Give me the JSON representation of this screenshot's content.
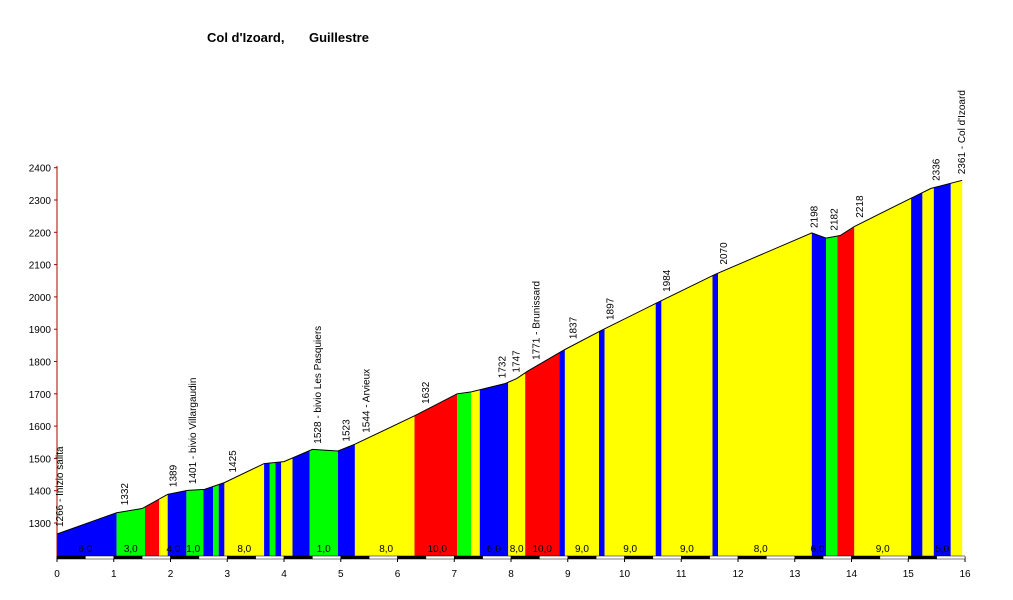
{
  "chart_data": {
    "type": "area",
    "title": "Col d'Izoard,",
    "subtitle": "Guillestre",
    "xlim": [
      0,
      16
    ],
    "ylim": [
      1200,
      2400
    ],
    "x_ticks": [
      "0",
      "1",
      "2",
      "3",
      "4",
      "5",
      "6",
      "7",
      "8",
      "9",
      "10",
      "11",
      "12",
      "13",
      "14",
      "15",
      "16"
    ],
    "y_ticks": [
      "1300",
      "1400",
      "1500",
      "1600",
      "1700",
      "1800",
      "1900",
      "2000",
      "2100",
      "2200",
      "2300",
      "2400"
    ],
    "colors": {
      "blue": "#0000ff",
      "green": "#00ff00",
      "red": "#ff0000",
      "yellow": "#ffff00"
    },
    "profile": [
      {
        "x": 0,
        "y": 1266
      },
      {
        "x": 1.05,
        "y": 1332
      },
      {
        "x": 1.5,
        "y": 1345
      },
      {
        "x": 1.95,
        "y": 1389
      },
      {
        "x": 2.3,
        "y": 1401
      },
      {
        "x": 2.6,
        "y": 1404
      },
      {
        "x": 2.95,
        "y": 1425
      },
      {
        "x": 3.65,
        "y": 1484
      },
      {
        "x": 4.0,
        "y": 1490
      },
      {
        "x": 4.5,
        "y": 1528
      },
      {
        "x": 4.95,
        "y": 1523
      },
      {
        "x": 5.25,
        "y": 1544
      },
      {
        "x": 6.3,
        "y": 1632
      },
      {
        "x": 7.05,
        "y": 1700
      },
      {
        "x": 7.3,
        "y": 1706
      },
      {
        "x": 7.9,
        "y": 1732
      },
      {
        "x": 8.1,
        "y": 1747
      },
      {
        "x": 8.3,
        "y": 1771
      },
      {
        "x": 8.95,
        "y": 1837
      },
      {
        "x": 9.6,
        "y": 1897
      },
      {
        "x": 10.6,
        "y": 1984
      },
      {
        "x": 11.6,
        "y": 2070
      },
      {
        "x": 13.3,
        "y": 2198
      },
      {
        "x": 13.55,
        "y": 2182
      },
      {
        "x": 13.8,
        "y": 2190
      },
      {
        "x": 14.05,
        "y": 2218
      },
      {
        "x": 15.1,
        "y": 2310
      },
      {
        "x": 15.4,
        "y": 2336
      },
      {
        "x": 15.95,
        "y": 2361
      }
    ],
    "segments": [
      {
        "x0": 0,
        "x1": 1.05,
        "color": "blue"
      },
      {
        "x0": 1.05,
        "x1": 1.55,
        "color": "green"
      },
      {
        "x0": 1.55,
        "x1": 1.8,
        "color": "red"
      },
      {
        "x0": 1.8,
        "x1": 1.95,
        "color": "yellow"
      },
      {
        "x0": 1.95,
        "x1": 2.28,
        "color": "blue"
      },
      {
        "x0": 2.28,
        "x1": 2.58,
        "color": "green"
      },
      {
        "x0": 2.58,
        "x1": 2.75,
        "color": "blue"
      },
      {
        "x0": 2.75,
        "x1": 2.85,
        "color": "green"
      },
      {
        "x0": 2.85,
        "x1": 2.95,
        "color": "blue"
      },
      {
        "x0": 2.95,
        "x1": 3.65,
        "color": "yellow"
      },
      {
        "x0": 3.65,
        "x1": 3.75,
        "color": "blue"
      },
      {
        "x0": 3.75,
        "x1": 3.85,
        "color": "green"
      },
      {
        "x0": 3.85,
        "x1": 3.95,
        "color": "blue"
      },
      {
        "x0": 3.95,
        "x1": 4.15,
        "color": "yellow"
      },
      {
        "x0": 4.15,
        "x1": 4.45,
        "color": "blue"
      },
      {
        "x0": 4.45,
        "x1": 4.95,
        "color": "green"
      },
      {
        "x0": 4.95,
        "x1": 5.25,
        "color": "blue"
      },
      {
        "x0": 5.25,
        "x1": 6.3,
        "color": "yellow"
      },
      {
        "x0": 6.3,
        "x1": 7.05,
        "color": "red"
      },
      {
        "x0": 7.05,
        "x1": 7.3,
        "color": "green"
      },
      {
        "x0": 7.3,
        "x1": 7.45,
        "color": "yellow"
      },
      {
        "x0": 7.45,
        "x1": 7.95,
        "color": "blue"
      },
      {
        "x0": 7.95,
        "x1": 8.25,
        "color": "yellow"
      },
      {
        "x0": 8.25,
        "x1": 8.85,
        "color": "red"
      },
      {
        "x0": 8.85,
        "x1": 8.95,
        "color": "blue"
      },
      {
        "x0": 8.95,
        "x1": 9.55,
        "color": "yellow"
      },
      {
        "x0": 9.55,
        "x1": 9.65,
        "color": "blue"
      },
      {
        "x0": 9.65,
        "x1": 10.55,
        "color": "yellow"
      },
      {
        "x0": 10.55,
        "x1": 10.65,
        "color": "blue"
      },
      {
        "x0": 10.65,
        "x1": 11.55,
        "color": "yellow"
      },
      {
        "x0": 11.55,
        "x1": 11.65,
        "color": "blue"
      },
      {
        "x0": 11.65,
        "x1": 13.3,
        "color": "yellow"
      },
      {
        "x0": 13.3,
        "x1": 13.55,
        "color": "blue"
      },
      {
        "x0": 13.55,
        "x1": 13.75,
        "color": "green"
      },
      {
        "x0": 13.75,
        "x1": 14.05,
        "color": "red"
      },
      {
        "x0": 14.05,
        "x1": 15.05,
        "color": "yellow"
      },
      {
        "x0": 15.05,
        "x1": 15.25,
        "color": "blue"
      },
      {
        "x0": 15.25,
        "x1": 15.45,
        "color": "yellow"
      },
      {
        "x0": 15.45,
        "x1": 15.75,
        "color": "blue"
      },
      {
        "x0": 15.75,
        "x1": 15.95,
        "color": "yellow"
      }
    ],
    "point_labels": [
      {
        "x": 0.05,
        "text": "1266 - Inizio salita"
      },
      {
        "x": 1.2,
        "text": "1332"
      },
      {
        "x": 2.05,
        "text": "1389"
      },
      {
        "x": 2.4,
        "text": "1401 - bivio Villargaudin"
      },
      {
        "x": 3.1,
        "text": "1425"
      },
      {
        "x": 4.6,
        "text": "1528 - bivio Les Pasquiers"
      },
      {
        "x": 5.1,
        "text": "1523"
      },
      {
        "x": 5.45,
        "text": "1544 - Arvieux"
      },
      {
        "x": 6.5,
        "text": "1632"
      },
      {
        "x": 7.85,
        "text": "1732"
      },
      {
        "x": 8.1,
        "text": "1747"
      },
      {
        "x": 8.45,
        "text": "1771 - Brunissard"
      },
      {
        "x": 9.1,
        "text": "1837"
      },
      {
        "x": 9.75,
        "text": "1897"
      },
      {
        "x": 10.75,
        "text": "1984"
      },
      {
        "x": 11.75,
        "text": "2070"
      },
      {
        "x": 13.35,
        "text": "2198"
      },
      {
        "x": 13.7,
        "text": "2182"
      },
      {
        "x": 14.15,
        "text": "2218"
      },
      {
        "x": 15.5,
        "text": "2336"
      },
      {
        "x": 15.95,
        "text": "2361 - Col d'Izoard"
      }
    ],
    "gradient_labels": [
      {
        "x": 0.5,
        "text": "6,0"
      },
      {
        "x": 1.3,
        "text": "3,0"
      },
      {
        "x": 2.05,
        "text": "4,0"
      },
      {
        "x": 2.4,
        "text": "1,0"
      },
      {
        "x": 3.3,
        "text": "8,0"
      },
      {
        "x": 4.7,
        "text": "1,0"
      },
      {
        "x": 5.8,
        "text": "8,0"
      },
      {
        "x": 6.7,
        "text": "10,0"
      },
      {
        "x": 7.7,
        "text": "6,0"
      },
      {
        "x": 8.1,
        "text": "8,0"
      },
      {
        "x": 8.55,
        "text": "10,0"
      },
      {
        "x": 9.25,
        "text": "9,0"
      },
      {
        "x": 10.1,
        "text": "9,0"
      },
      {
        "x": 11.1,
        "text": "9,0"
      },
      {
        "x": 12.4,
        "text": "8,0"
      },
      {
        "x": 13.4,
        "text": "6,0"
      },
      {
        "x": 14.55,
        "text": "9,0"
      },
      {
        "x": 15.6,
        "text": "5,0"
      }
    ]
  }
}
